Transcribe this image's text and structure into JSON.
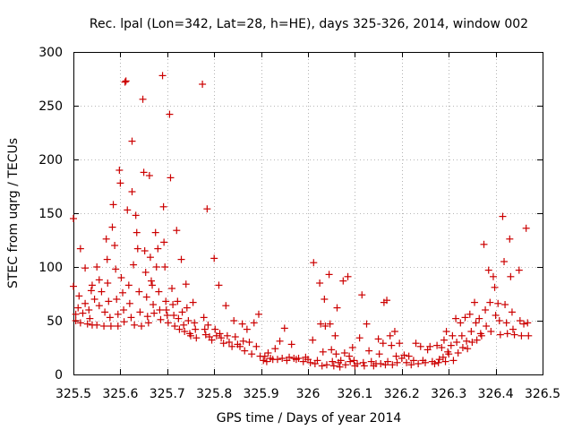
{
  "chart_data": {
    "type": "scatter",
    "title": "Rec. lpal (Lon=342, Lat=28, h=HE), days 325-326, 2014, window 002",
    "xlabel": "GPS time / Days of year 2014",
    "ylabel": "STEC from uqrg / TECUs",
    "xlim": [
      325.5,
      326.5
    ],
    "ylim": [
      0,
      300
    ],
    "xticks": [
      "325.5",
      "325.6",
      "325.7",
      "325.8",
      "325.9",
      "326",
      "326.1",
      "326.2",
      "326.3",
      "326.4",
      "326.5"
    ],
    "xtick_values": [
      325.5,
      325.6,
      325.7,
      325.8,
      325.9,
      326.0,
      326.1,
      326.2,
      326.3,
      326.4,
      326.5
    ],
    "yticks": [
      "0",
      "50",
      "100",
      "150",
      "200",
      "250",
      "300"
    ],
    "ytick_values": [
      0,
      50,
      100,
      150,
      200,
      250,
      300
    ],
    "grid": true,
    "marker": "+",
    "color": "#cc0000",
    "series": [
      {
        "points": [
          [
            325.5,
            145
          ],
          [
            325.5,
            82
          ],
          [
            325.505,
            56
          ],
          [
            325.505,
            50
          ],
          [
            325.51,
            62
          ],
          [
            325.512,
            73
          ],
          [
            325.515,
            117
          ],
          [
            325.515,
            48
          ],
          [
            325.52,
            57
          ],
          [
            325.525,
            99
          ],
          [
            325.525,
            66
          ],
          [
            325.53,
            47
          ],
          [
            325.533,
            60
          ],
          [
            325.535,
            52
          ],
          [
            325.538,
            78
          ],
          [
            325.54,
            83
          ],
          [
            325.54,
            46
          ],
          [
            325.545,
            70
          ],
          [
            325.55,
            100
          ],
          [
            325.55,
            46
          ],
          [
            325.555,
            88
          ],
          [
            325.555,
            64
          ],
          [
            325.56,
            77
          ],
          [
            325.565,
            45
          ],
          [
            325.567,
            58
          ],
          [
            325.57,
            126
          ],
          [
            325.572,
            107
          ],
          [
            325.573,
            85
          ],
          [
            325.575,
            68
          ],
          [
            325.578,
            53
          ],
          [
            325.58,
            45
          ],
          [
            325.583,
            137
          ],
          [
            325.585,
            158
          ],
          [
            325.588,
            120
          ],
          [
            325.59,
            98
          ],
          [
            325.592,
            70
          ],
          [
            325.595,
            56
          ],
          [
            325.595,
            45
          ],
          [
            325.598,
            190
          ],
          [
            325.6,
            178
          ],
          [
            325.602,
            90
          ],
          [
            325.605,
            76
          ],
          [
            325.607,
            60
          ],
          [
            325.608,
            49
          ],
          [
            325.61,
            272
          ],
          [
            325.612,
            273
          ],
          [
            325.615,
            153
          ],
          [
            325.618,
            83
          ],
          [
            325.62,
            66
          ],
          [
            325.623,
            53
          ],
          [
            325.625,
            217
          ],
          [
            325.625,
            170
          ],
          [
            325.628,
            102
          ],
          [
            325.63,
            46
          ],
          [
            325.633,
            148
          ],
          [
            325.635,
            132
          ],
          [
            325.637,
            117
          ],
          [
            325.64,
            77
          ],
          [
            325.642,
            58
          ],
          [
            325.645,
            45
          ],
          [
            325.648,
            256
          ],
          [
            325.65,
            188
          ],
          [
            325.652,
            115
          ],
          [
            325.654,
            95
          ],
          [
            325.656,
            72
          ],
          [
            325.658,
            54
          ],
          [
            325.66,
            48
          ],
          [
            325.662,
            185
          ],
          [
            325.664,
            109
          ],
          [
            325.666,
            87
          ],
          [
            325.668,
            83
          ],
          [
            325.67,
            65
          ],
          [
            325.672,
            57
          ],
          [
            325.675,
            132
          ],
          [
            325.677,
            100
          ],
          [
            325.68,
            117
          ],
          [
            325.682,
            77
          ],
          [
            325.684,
            60
          ],
          [
            325.686,
            51
          ],
          [
            325.69,
            278
          ],
          [
            325.692,
            156
          ],
          [
            325.693,
            123
          ],
          [
            325.695,
            100
          ],
          [
            325.697,
            68
          ],
          [
            325.698,
            60
          ],
          [
            325.7,
            55
          ],
          [
            325.702,
            48
          ],
          [
            325.705,
            242
          ],
          [
            325.707,
            183
          ],
          [
            325.71,
            80
          ],
          [
            325.712,
            65
          ],
          [
            325.714,
            55
          ],
          [
            325.716,
            45
          ],
          [
            325.72,
            134
          ],
          [
            325.722,
            68
          ],
          [
            325.724,
            52
          ],
          [
            325.726,
            42
          ],
          [
            325.73,
            107
          ],
          [
            325.732,
            58
          ],
          [
            325.735,
            46
          ],
          [
            325.737,
            40
          ],
          [
            325.74,
            84
          ],
          [
            325.742,
            62
          ],
          [
            325.745,
            50
          ],
          [
            325.748,
            38
          ],
          [
            325.75,
            36
          ],
          [
            325.755,
            67
          ],
          [
            325.758,
            48
          ],
          [
            325.76,
            42
          ],
          [
            325.762,
            34
          ],
          [
            325.775,
            270
          ],
          [
            325.778,
            53
          ],
          [
            325.78,
            42
          ],
          [
            325.782,
            37
          ],
          [
            325.785,
            154
          ],
          [
            325.787,
            46
          ],
          [
            325.79,
            35
          ],
          [
            325.795,
            32
          ],
          [
            325.8,
            108
          ],
          [
            325.802,
            42
          ],
          [
            325.805,
            36
          ],
          [
            325.81,
            83
          ],
          [
            325.812,
            38
          ],
          [
            325.815,
            34
          ],
          [
            325.82,
            29
          ],
          [
            325.825,
            64
          ],
          [
            325.828,
            36
          ],
          [
            325.832,
            30
          ],
          [
            325.838,
            26
          ],
          [
            325.842,
            50
          ],
          [
            325.845,
            35
          ],
          [
            325.85,
            28
          ],
          [
            325.855,
            26
          ],
          [
            325.86,
            47
          ],
          [
            325.862,
            31
          ],
          [
            325.865,
            22
          ],
          [
            325.87,
            42
          ],
          [
            325.875,
            30
          ],
          [
            325.88,
            19
          ],
          [
            325.885,
            48
          ],
          [
            325.89,
            26
          ],
          [
            325.895,
            56
          ],
          [
            325.898,
            17
          ],
          [
            325.905,
            13
          ],
          [
            325.908,
            17
          ],
          [
            325.912,
            12
          ],
          [
            325.915,
            20
          ],
          [
            325.92,
            15
          ],
          [
            325.925,
            14
          ],
          [
            325.93,
            24
          ],
          [
            325.935,
            14
          ],
          [
            325.94,
            31
          ],
          [
            325.945,
            15
          ],
          [
            325.95,
            43
          ],
          [
            325.955,
            13
          ],
          [
            325.96,
            16
          ],
          [
            325.965,
            28
          ],
          [
            325.97,
            15
          ],
          [
            325.975,
            14
          ],
          [
            325.98,
            15
          ],
          [
            325.99,
            12
          ],
          [
            325.995,
            16
          ],
          [
            326.0,
            14
          ],
          [
            326.005,
            11
          ],
          [
            326.01,
            32
          ],
          [
            326.012,
            104
          ],
          [
            326.015,
            10
          ],
          [
            326.02,
            13
          ],
          [
            326.025,
            85
          ],
          [
            326.027,
            47
          ],
          [
            326.03,
            8
          ],
          [
            326.032,
            21
          ],
          [
            326.035,
            70
          ],
          [
            326.037,
            45
          ],
          [
            326.04,
            9
          ],
          [
            326.045,
            93
          ],
          [
            326.047,
            47
          ],
          [
            326.05,
            23
          ],
          [
            326.052,
            12
          ],
          [
            326.055,
            8
          ],
          [
            326.058,
            36
          ],
          [
            326.06,
            19
          ],
          [
            326.062,
            62
          ],
          [
            326.065,
            11
          ],
          [
            326.068,
            7
          ],
          [
            326.07,
            13
          ],
          [
            326.075,
            87
          ],
          [
            326.078,
            20
          ],
          [
            326.08,
            9
          ],
          [
            326.085,
            91
          ],
          [
            326.088,
            17
          ],
          [
            326.09,
            12
          ],
          [
            326.095,
            25
          ],
          [
            326.098,
            13
          ],
          [
            326.1,
            8
          ],
          [
            326.105,
            10
          ],
          [
            326.11,
            34
          ],
          [
            326.115,
            74
          ],
          [
            326.118,
            11
          ],
          [
            326.12,
            8
          ],
          [
            326.125,
            47
          ],
          [
            326.13,
            22
          ],
          [
            326.135,
            12
          ],
          [
            326.14,
            8
          ],
          [
            326.145,
            10
          ],
          [
            326.15,
            33
          ],
          [
            326.152,
            19
          ],
          [
            326.155,
            10
          ],
          [
            326.16,
            29
          ],
          [
            326.162,
            67
          ],
          [
            326.165,
            9
          ],
          [
            326.168,
            69
          ],
          [
            326.17,
            12
          ],
          [
            326.175,
            36
          ],
          [
            326.178,
            27
          ],
          [
            326.18,
            9
          ],
          [
            326.185,
            40
          ],
          [
            326.188,
            17
          ],
          [
            326.19,
            11
          ],
          [
            326.195,
            29
          ],
          [
            326.2,
            15
          ],
          [
            326.205,
            18
          ],
          [
            326.21,
            11
          ],
          [
            326.215,
            17
          ],
          [
            326.22,
            9
          ],
          [
            326.225,
            13
          ],
          [
            326.23,
            29
          ],
          [
            326.235,
            10
          ],
          [
            326.24,
            26
          ],
          [
            326.245,
            13
          ],
          [
            326.25,
            11
          ],
          [
            326.255,
            23
          ],
          [
            326.26,
            26
          ],
          [
            326.265,
            12
          ],
          [
            326.27,
            10
          ],
          [
            326.275,
            27
          ],
          [
            326.278,
            11
          ],
          [
            326.28,
            14
          ],
          [
            326.285,
            25
          ],
          [
            326.288,
            16
          ],
          [
            326.29,
            32
          ],
          [
            326.293,
            12
          ],
          [
            326.295,
            40
          ],
          [
            326.298,
            21
          ],
          [
            326.3,
            19
          ],
          [
            326.305,
            27
          ],
          [
            326.308,
            36
          ],
          [
            326.31,
            13
          ],
          [
            326.315,
            52
          ],
          [
            326.317,
            30
          ],
          [
            326.32,
            20
          ],
          [
            326.325,
            48
          ],
          [
            326.328,
            36
          ],
          [
            326.33,
            25
          ],
          [
            326.335,
            53
          ],
          [
            326.338,
            31
          ],
          [
            326.34,
            24
          ],
          [
            326.345,
            56
          ],
          [
            326.348,
            40
          ],
          [
            326.35,
            30
          ],
          [
            326.355,
            67
          ],
          [
            326.358,
            48
          ],
          [
            326.36,
            32
          ],
          [
            326.365,
            52
          ],
          [
            326.368,
            38
          ],
          [
            326.37,
            36
          ],
          [
            326.375,
            121
          ],
          [
            326.378,
            60
          ],
          [
            326.38,
            45
          ],
          [
            326.385,
            97
          ],
          [
            326.388,
            67
          ],
          [
            326.39,
            40
          ],
          [
            326.395,
            91
          ],
          [
            326.398,
            81
          ],
          [
            326.4,
            55
          ],
          [
            326.405,
            66
          ],
          [
            326.408,
            50
          ],
          [
            326.41,
            37
          ],
          [
            326.415,
            147
          ],
          [
            326.418,
            105
          ],
          [
            326.42,
            65
          ],
          [
            326.423,
            48
          ],
          [
            326.425,
            38
          ],
          [
            326.43,
            126
          ],
          [
            326.432,
            91
          ],
          [
            326.435,
            58
          ],
          [
            326.437,
            42
          ],
          [
            326.44,
            37
          ],
          [
            326.45,
            97
          ],
          [
            326.452,
            50
          ],
          [
            326.455,
            36
          ],
          [
            326.46,
            47
          ],
          [
            326.465,
            136
          ],
          [
            326.468,
            48
          ],
          [
            326.47,
            36
          ]
        ]
      }
    ]
  }
}
